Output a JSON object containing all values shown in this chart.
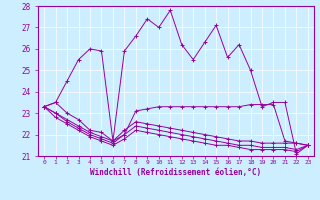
{
  "xlabel": "Windchill (Refroidissement éolien,°C)",
  "background_color": "#cceeff",
  "line_color": "#990099",
  "x_labels": [
    "0",
    "1",
    "2",
    "3",
    "4",
    "5",
    "6",
    "7",
    "8",
    "9",
    "10",
    "11",
    "12",
    "13",
    "14",
    "15",
    "16",
    "17",
    "18",
    "19",
    "20",
    "21",
    "22",
    "23"
  ],
  "xlim": [
    -0.5,
    23.5
  ],
  "ylim": [
    21,
    28
  ],
  "yticks": [
    21,
    22,
    23,
    24,
    25,
    26,
    27,
    28
  ],
  "series": [
    [
      23.3,
      23.5,
      24.5,
      25.5,
      26.0,
      25.9,
      21.7,
      25.9,
      26.6,
      27.4,
      27.0,
      27.8,
      26.2,
      25.5,
      26.3,
      27.1,
      25.6,
      26.2,
      25.0,
      23.3,
      23.5,
      23.5,
      21.1,
      21.5
    ],
    [
      23.3,
      23.5,
      23.0,
      22.7,
      22.2,
      22.1,
      21.7,
      22.0,
      23.1,
      23.2,
      23.3,
      23.3,
      23.3,
      23.3,
      23.3,
      23.3,
      23.3,
      23.3,
      23.4,
      23.4,
      23.4,
      21.7,
      21.6,
      21.5
    ],
    [
      23.3,
      23.0,
      22.7,
      22.4,
      22.1,
      21.9,
      21.7,
      22.2,
      22.6,
      22.5,
      22.4,
      22.3,
      22.2,
      22.1,
      22.0,
      21.9,
      21.8,
      21.7,
      21.7,
      21.6,
      21.6,
      21.6,
      21.6,
      21.5
    ],
    [
      23.3,
      23.0,
      22.6,
      22.3,
      22.0,
      21.8,
      21.6,
      22.0,
      22.4,
      22.3,
      22.2,
      22.1,
      22.0,
      21.9,
      21.8,
      21.7,
      21.6,
      21.5,
      21.5,
      21.4,
      21.4,
      21.4,
      21.3,
      21.5
    ],
    [
      23.3,
      22.8,
      22.5,
      22.2,
      21.9,
      21.7,
      21.5,
      21.8,
      22.2,
      22.1,
      22.0,
      21.9,
      21.8,
      21.7,
      21.6,
      21.5,
      21.5,
      21.4,
      21.3,
      21.3,
      21.3,
      21.3,
      21.2,
      21.5
    ]
  ]
}
